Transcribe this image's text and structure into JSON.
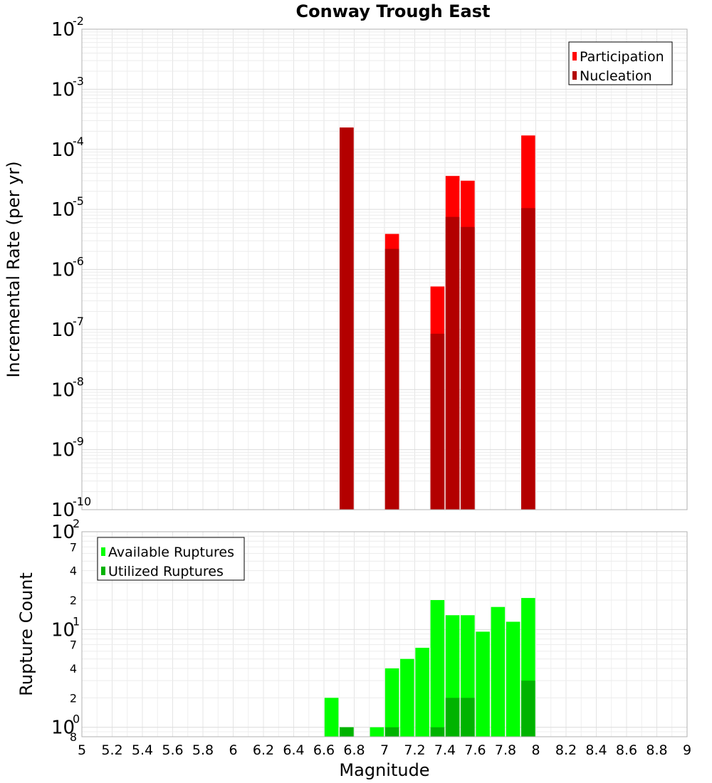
{
  "chart_data": [
    {
      "type": "bar",
      "title": "Conway Trough East",
      "xlabel": "",
      "ylabel": "Incremental Rate (per yr)",
      "yscale": "log",
      "ylim": [
        1e-10,
        0.01
      ],
      "xlim": [
        5,
        9
      ],
      "grid": true,
      "legend_position": "top-right",
      "y_tick_labels": [
        {
          "base": "10",
          "exp": "-10"
        },
        {
          "base": "10",
          "exp": "-9"
        },
        {
          "base": "10",
          "exp": "-8"
        },
        {
          "base": "10",
          "exp": "-7"
        },
        {
          "base": "10",
          "exp": "-6"
        },
        {
          "base": "10",
          "exp": "-5"
        },
        {
          "base": "10",
          "exp": "-4"
        },
        {
          "base": "10",
          "exp": "-3"
        },
        {
          "base": "10",
          "exp": "-2"
        }
      ],
      "series": [
        {
          "name": "Participation",
          "color": "#ff0000",
          "points": [
            {
              "x": 6.75,
              "y": 0.00023
            },
            {
              "x": 7.05,
              "y": 3.9e-06
            },
            {
              "x": 7.35,
              "y": 5.2e-07
            },
            {
              "x": 7.45,
              "y": 3.6e-05
            },
            {
              "x": 7.55,
              "y": 3e-05
            },
            {
              "x": 7.95,
              "y": 0.00017
            }
          ]
        },
        {
          "name": "Nucleation",
          "color": "#b30000",
          "points": [
            {
              "x": 6.75,
              "y": 0.00023
            },
            {
              "x": 7.05,
              "y": 2.2e-06
            },
            {
              "x": 7.35,
              "y": 8.5e-08
            },
            {
              "x": 7.45,
              "y": 7.5e-06
            },
            {
              "x": 7.55,
              "y": 5.1e-06
            },
            {
              "x": 7.95,
              "y": 1.05e-05
            }
          ]
        }
      ]
    },
    {
      "type": "bar",
      "title": "",
      "xlabel": "Magnitude",
      "ylabel": "Rupture Count",
      "yscale": "log",
      "ylim": [
        0.8,
        100
      ],
      "xlim": [
        5,
        9
      ],
      "grid": true,
      "legend_position": "top-left",
      "x_ticks": [
        "5",
        "5.2",
        "5.4",
        "5.6",
        "5.8",
        "6",
        "6.2",
        "6.4",
        "6.6",
        "6.8",
        "7",
        "7.2",
        "7.4",
        "7.6",
        "7.8",
        "8",
        "8.2",
        "8.4",
        "8.6",
        "8.8",
        "9"
      ],
      "y_tick_labels": [
        {
          "base": "10",
          "exp": "0"
        },
        {
          "base": "10",
          "exp": "1"
        },
        {
          "base": "10",
          "exp": "2"
        }
      ],
      "y_minor_labels": [
        "8",
        "2",
        "4",
        "7",
        "2",
        "4",
        "7"
      ],
      "series": [
        {
          "name": "Available Ruptures",
          "color": "#00ff00",
          "points": [
            {
              "x": 6.65,
              "y": 2
            },
            {
              "x": 6.75,
              "y": 1
            },
            {
              "x": 6.95,
              "y": 1
            },
            {
              "x": 7.05,
              "y": 4
            },
            {
              "x": 7.15,
              "y": 5
            },
            {
              "x": 7.25,
              "y": 6.5
            },
            {
              "x": 7.35,
              "y": 20
            },
            {
              "x": 7.45,
              "y": 14
            },
            {
              "x": 7.55,
              "y": 14
            },
            {
              "x": 7.65,
              "y": 9.5
            },
            {
              "x": 7.75,
              "y": 17
            },
            {
              "x": 7.85,
              "y": 12
            },
            {
              "x": 7.95,
              "y": 21
            }
          ]
        },
        {
          "name": "Utilized Ruptures",
          "color": "#00b300",
          "points": [
            {
              "x": 6.75,
              "y": 1
            },
            {
              "x": 7.05,
              "y": 1
            },
            {
              "x": 7.35,
              "y": 1
            },
            {
              "x": 7.45,
              "y": 2
            },
            {
              "x": 7.55,
              "y": 2
            },
            {
              "x": 7.95,
              "y": 3
            }
          ]
        }
      ]
    }
  ]
}
